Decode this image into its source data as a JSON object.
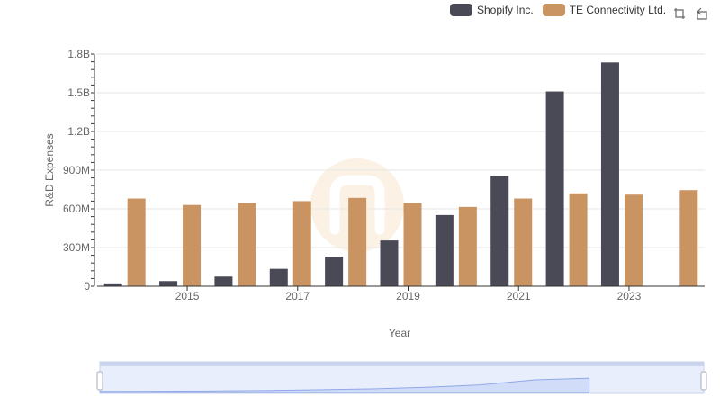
{
  "chart_data": {
    "type": "bar",
    "xlabel": "Year",
    "ylabel": "R&D Expenses",
    "categories": [
      "2014",
      "2015",
      "2016",
      "2017",
      "2018",
      "2019",
      "2020",
      "2021",
      "2022",
      "2023",
      "2024"
    ],
    "x_tick_labels": [
      "2015",
      "2017",
      "2019",
      "2021",
      "2023"
    ],
    "y_ticks": [
      0,
      300000000,
      600000000,
      900000000,
      1200000000,
      1500000000,
      1800000000
    ],
    "y_tick_labels": [
      "0",
      "300M",
      "600M",
      "900M",
      "1.2B",
      "1.5B",
      "1.8B"
    ],
    "ylim": [
      0,
      1800000000
    ],
    "grid": true,
    "legend_position": "top-right",
    "series": [
      {
        "name": "Shopify Inc.",
        "color": "#4a4a56",
        "values": [
          22000000,
          40000000,
          75000000,
          135000000,
          230000000,
          355000000,
          552000000,
          855000000,
          1510000000,
          1735000000,
          null
        ]
      },
      {
        "name": "TE Connectivity Ltd.",
        "color": "#c99462",
        "values": [
          680000000,
          630000000,
          645000000,
          660000000,
          685000000,
          645000000,
          615000000,
          680000000,
          720000000,
          710000000,
          745000000
        ]
      }
    ]
  },
  "toolbar": {
    "icons": [
      "zoom-select-icon",
      "restore-icon"
    ]
  }
}
